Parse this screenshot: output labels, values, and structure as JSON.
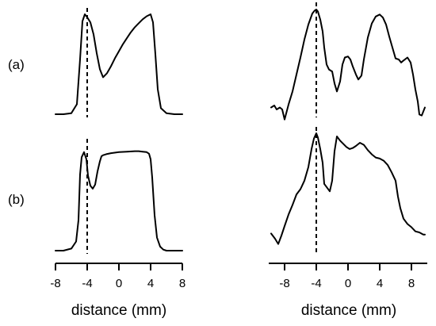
{
  "chart_data": [
    {
      "type": "line",
      "panel": "left-top",
      "row_label": "(a)",
      "x": [
        -8,
        -7,
        -6,
        -5.3,
        -4.9,
        -4.6,
        -4.3,
        -4,
        -3.6,
        -3.2,
        -2.8,
        -2.4,
        -2,
        -1.5,
        -1,
        -0.5,
        0,
        0.5,
        1,
        1.5,
        2,
        2.5,
        3,
        3.5,
        4,
        4.3,
        4.6,
        4.9,
        5.3,
        6,
        7,
        8
      ],
      "y": [
        0.0,
        0.0,
        0.01,
        0.1,
        0.55,
        0.93,
        1.0,
        0.97,
        0.92,
        0.8,
        0.61,
        0.45,
        0.37,
        0.41,
        0.48,
        0.56,
        0.63,
        0.7,
        0.76,
        0.82,
        0.87,
        0.91,
        0.95,
        0.98,
        1.0,
        0.92,
        0.6,
        0.25,
        0.06,
        0.01,
        0.0,
        0.0
      ],
      "xlim": [
        -8,
        8
      ],
      "ylim": [
        0,
        1
      ]
    },
    {
      "type": "line",
      "panel": "right-top",
      "x": [
        -9.7,
        -9.3,
        -9,
        -8.6,
        -8.3,
        -8,
        -7.5,
        -7,
        -6.5,
        -6,
        -5.5,
        -5,
        -4.5,
        -4.2,
        -4,
        -3.8,
        -3.5,
        -3.2,
        -3,
        -2.7,
        -2.4,
        -2,
        -1.7,
        -1.4,
        -1,
        -0.7,
        -0.4,
        0,
        0.3,
        0.6,
        1,
        1.3,
        1.7,
        2,
        2.5,
        3,
        3.5,
        4,
        4.4,
        4.8,
        5.2,
        5.6,
        6,
        6.4,
        6.7,
        7,
        7.5,
        7.9,
        8.2,
        8.5,
        8.8,
        9,
        9.3,
        9.7
      ],
      "y": [
        0.02,
        0.04,
        0.0,
        0.02,
        0.0,
        -0.1,
        0.05,
        0.18,
        0.35,
        0.52,
        0.7,
        0.85,
        0.96,
        0.99,
        1.0,
        0.98,
        0.9,
        0.78,
        0.62,
        0.45,
        0.4,
        0.38,
        0.26,
        0.18,
        0.28,
        0.45,
        0.52,
        0.53,
        0.5,
        0.43,
        0.35,
        0.3,
        0.34,
        0.5,
        0.72,
        0.86,
        0.93,
        0.95,
        0.92,
        0.85,
        0.73,
        0.62,
        0.51,
        0.5,
        0.47,
        0.49,
        0.52,
        0.47,
        0.35,
        0.2,
        0.08,
        -0.05,
        -0.06,
        0.02
      ],
      "xlim": [
        -10,
        10
      ],
      "ylim": [
        0,
        1
      ]
    },
    {
      "type": "line",
      "panel": "left-bottom",
      "row_label": "(b)",
      "x": [
        -8,
        -7,
        -6,
        -5.4,
        -5.1,
        -4.9,
        -4.7,
        -4.4,
        -4.1,
        -3.9,
        -3.6,
        -3.3,
        -3,
        -2.7,
        -2.4,
        -2.2,
        -2,
        -1.6,
        -1,
        0,
        1,
        2,
        2.5,
        3,
        3.5,
        3.8,
        4,
        4.2,
        4.5,
        4.8,
        5.2,
        5.6,
        6,
        7,
        8
      ],
      "y": [
        0.0,
        0.0,
        0.02,
        0.09,
        0.3,
        0.75,
        0.92,
        0.97,
        0.9,
        0.74,
        0.64,
        0.61,
        0.65,
        0.78,
        0.88,
        0.93,
        0.94,
        0.95,
        0.96,
        0.97,
        0.975,
        0.98,
        0.98,
        0.975,
        0.97,
        0.955,
        0.9,
        0.72,
        0.35,
        0.13,
        0.04,
        0.01,
        0.0,
        0.0,
        0.0
      ],
      "xlim": [
        -8,
        8
      ],
      "ylim": [
        0,
        1
      ]
    },
    {
      "type": "line",
      "panel": "right-bottom",
      "x": [
        -9.7,
        -9.2,
        -8.8,
        -8.4,
        -8,
        -7.5,
        -7,
        -6.5,
        -6,
        -5.5,
        -5,
        -4.6,
        -4.3,
        -4,
        -3.8,
        -3.5,
        -3.2,
        -3,
        -2.7,
        -2.3,
        -2,
        -1.7,
        -1.4,
        -1,
        -0.6,
        -0.2,
        0.2,
        0.6,
        1,
        1.5,
        2,
        2.5,
        3,
        3.5,
        4,
        4.5,
        5,
        5.5,
        6,
        6.3,
        6.6,
        7,
        7.5,
        8,
        8.5,
        9,
        9.5,
        9.7
      ],
      "y": [
        0.05,
        0.0,
        -0.05,
        0.03,
        0.12,
        0.23,
        0.32,
        0.42,
        0.47,
        0.55,
        0.68,
        0.85,
        0.95,
        1.0,
        0.96,
        0.85,
        0.72,
        0.52,
        0.49,
        0.45,
        0.55,
        0.83,
        0.97,
        0.93,
        0.9,
        0.87,
        0.85,
        0.86,
        0.88,
        0.91,
        0.89,
        0.84,
        0.8,
        0.77,
        0.76,
        0.74,
        0.7,
        0.63,
        0.55,
        0.4,
        0.29,
        0.19,
        0.14,
        0.11,
        0.07,
        0.06,
        0.04,
        0.04
      ],
      "xlim": [
        -10,
        10
      ],
      "ylim": [
        0,
        1
      ]
    }
  ],
  "x_axes": {
    "left": {
      "ticks": [
        -8,
        -4,
        0,
        4,
        8
      ],
      "tick_labels": [
        "-8",
        "-4",
        "0",
        "4",
        "8"
      ],
      "xlabel": "distance (mm)"
    },
    "right": {
      "ticks": [
        -8,
        -4,
        0,
        4,
        8
      ],
      "tick_labels": [
        "-8",
        "-4",
        "0",
        "4",
        "8"
      ],
      "xlabel": "distance (mm)"
    }
  },
  "dashed_reference_x": -4
}
